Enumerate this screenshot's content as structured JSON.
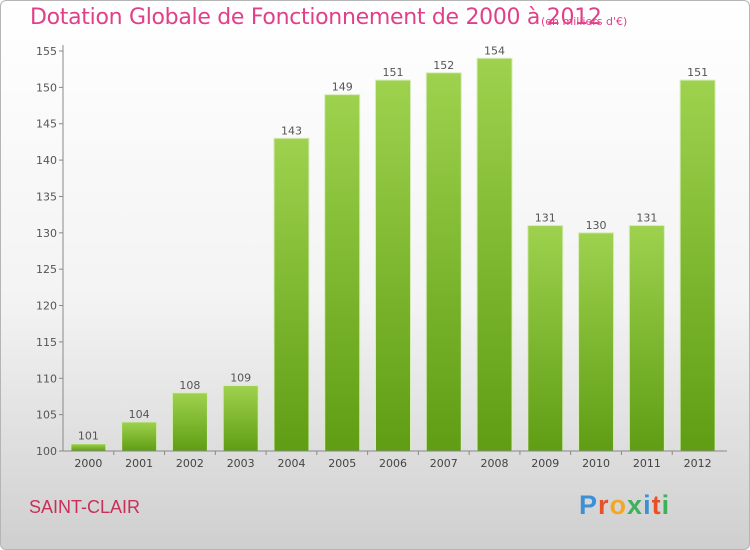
{
  "title": "Dotation Globale de Fonctionnement de 2000 à 2012",
  "subtitle": "(en milliers d'€)",
  "city": "SAINT-CLAIR",
  "logo": {
    "letters": [
      "P",
      "r",
      "o",
      "x",
      "i",
      "t",
      "i"
    ],
    "colors": [
      "#3d8fd6",
      "#e8502a",
      "#f2a823",
      "#3db15a",
      "#3d8fd6",
      "#e8502a",
      "#3db15a"
    ]
  },
  "chart_data": {
    "type": "bar",
    "categories": [
      "2000",
      "2001",
      "2002",
      "2003",
      "2004",
      "2005",
      "2006",
      "2007",
      "2008",
      "2009",
      "2010",
      "2011",
      "2012"
    ],
    "values": [
      101,
      104,
      108,
      109,
      143,
      149,
      151,
      152,
      154,
      131,
      130,
      131,
      151
    ],
    "ylim": [
      100,
      155
    ],
    "yticks": [
      100,
      105,
      110,
      115,
      120,
      125,
      130,
      135,
      140,
      145,
      150,
      155
    ],
    "grid": false,
    "bar_color_top": "#9ed24e",
    "bar_color_bottom": "#5f9d14"
  }
}
